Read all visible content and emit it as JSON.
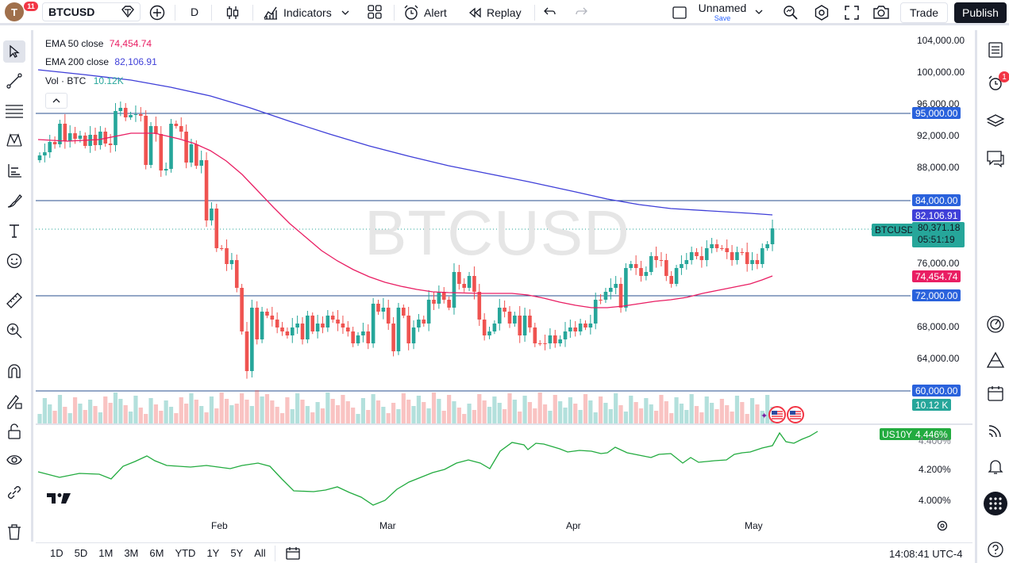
{
  "topbar": {
    "avatar_letter": "T",
    "notifications_count": "11",
    "symbol": "BTCUSD",
    "interval": "D",
    "indicators_label": "Indicators",
    "alert_label": "Alert",
    "replay_label": "Replay",
    "layout_name": "Unnamed",
    "save_label": "Save",
    "trade_label": "Trade",
    "publish_label": "Publish"
  },
  "legend": {
    "ema50_label": "EMA 50 close",
    "ema50_value": "74,454.74",
    "ema200_label": "EMA 200 close",
    "ema200_value": "82,106.91",
    "vol_label": "Vol · BTC",
    "vol_value": "10.12K"
  },
  "watermark": "BTCUSD",
  "price_axis": {
    "labels": [
      "104,000.00",
      "100,000.00",
      "96,000.00",
      "92,000.00",
      "88,000.00",
      "76,000.00",
      "68,000.00",
      "64,000.00"
    ],
    "hlines": [
      "95,000.00",
      "84,000.00",
      "72,000.00",
      "60,000.00"
    ],
    "ema200_tag": "82,106.91",
    "ema50_tag": "74,454.74",
    "symbol_tag": "BTCUSD",
    "last_price": "80,371.18",
    "countdown": "05:51:19",
    "volume_tag": "10.12 K"
  },
  "lower_pane": {
    "symbol": "US10Y",
    "value": "4.446%",
    "axis_labels": [
      "4.400%",
      "4.200%",
      "4.000%"
    ]
  },
  "time_axis": [
    "Feb",
    "Mar",
    "Apr",
    "May"
  ],
  "bottombar": {
    "ranges": [
      "1D",
      "5D",
      "1M",
      "3M",
      "6M",
      "YTD",
      "1Y",
      "5Y",
      "All"
    ],
    "clock": "14:08:41 UTC-4"
  },
  "right_sidebar": {
    "alerts_badge": "1"
  },
  "colors": {
    "up": "#26a69a",
    "down": "#ef5350",
    "ema50": "#e91e63",
    "ema200": "#3f3fd8",
    "hline": "#2a4f8f",
    "us10y": "#22ab3f"
  },
  "chart_data": {
    "type": "candlestick",
    "price_scale": "linear",
    "hlines": [
      95000,
      84000,
      72000,
      60000
    ],
    "ema50_last": 74454.74,
    "ema200_last": 82106.91,
    "last_close": 80371.18,
    "volume_last": "10.12K",
    "us10y_last": 4.446,
    "ylim": [
      60000,
      104000
    ],
    "x_labels": [
      "Feb",
      "Mar",
      "Apr",
      "May"
    ]
  }
}
